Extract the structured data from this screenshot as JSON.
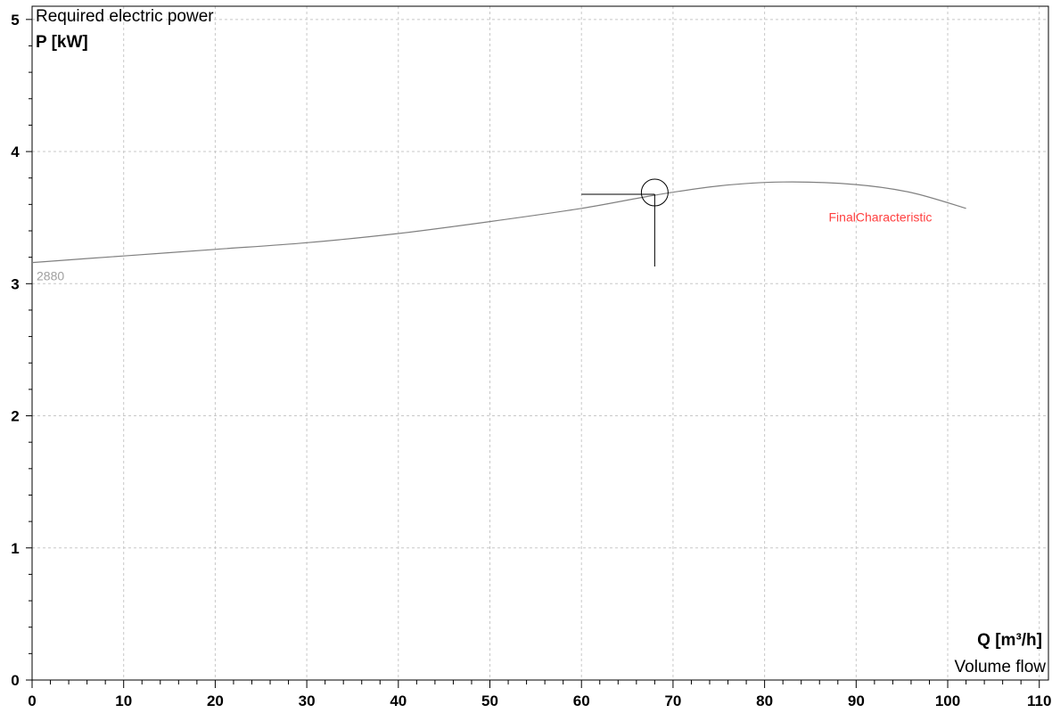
{
  "chart_data": {
    "type": "line",
    "title": "Required electric power",
    "ylabel": "P [kW]",
    "xlabel": "Q [m³/h]",
    "xlabel_caption": "Volume flow",
    "xlim": [
      0,
      111
    ],
    "ylim": [
      0,
      5.1
    ],
    "x_ticks": [
      0,
      10,
      20,
      30,
      40,
      50,
      60,
      70,
      80,
      90,
      100,
      110
    ],
    "y_ticks": [
      0,
      1,
      2,
      3,
      4,
      5
    ],
    "grid": true,
    "series": [
      {
        "name": "2880",
        "color": "#808080",
        "label_color": "#a0a0a0",
        "x": [
          0,
          10,
          20,
          30,
          40,
          50,
          60,
          68,
          75,
          82,
          90,
          96,
          102
        ],
        "y": [
          3.16,
          3.21,
          3.26,
          3.31,
          3.38,
          3.47,
          3.57,
          3.67,
          3.74,
          3.77,
          3.75,
          3.69,
          3.57
        ]
      }
    ],
    "annotations": [
      {
        "text": "FinalCharacteristic",
        "color": "#ff4040",
        "x": 87,
        "y": 3.47
      }
    ],
    "operating_point": {
      "x": 68,
      "y": 3.69
    }
  }
}
